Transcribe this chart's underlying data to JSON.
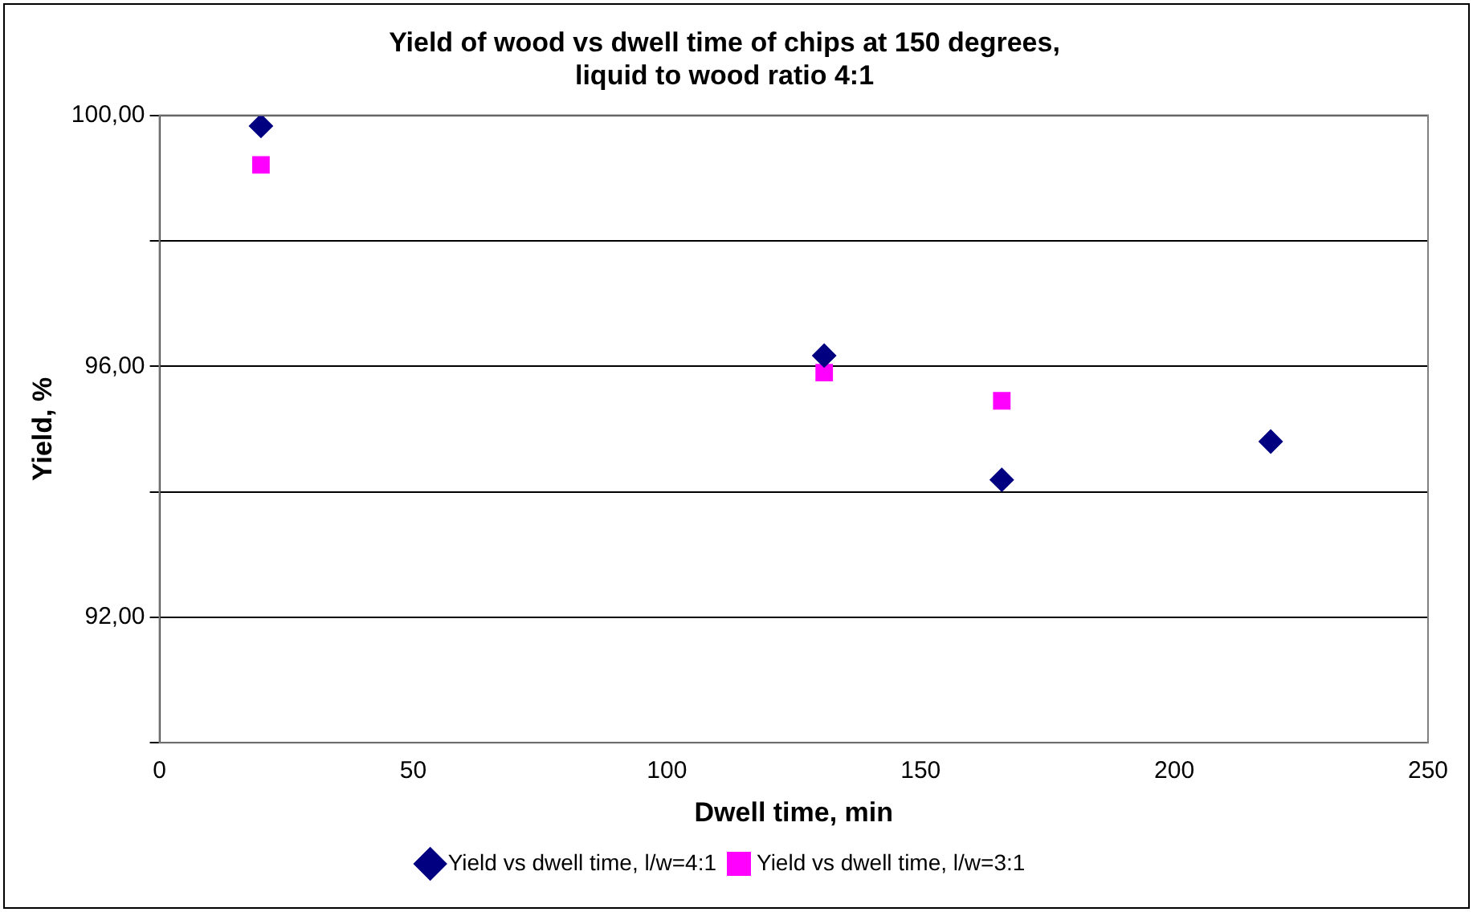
{
  "chart_data": {
    "type": "scatter",
    "title": [
      "Yield of wood vs dwell time of chips at 150 degrees,",
      "liquid to wood ratio 4:1"
    ],
    "xlabel": "Dwell time, min",
    "ylabel": "Yield, %",
    "series": [
      {
        "name": "Yield vs dwell time, l/w=4:1",
        "color": "#000080",
        "marker": "diamond",
        "x": [
          20,
          131,
          166,
          219
        ],
        "values": [
          99.83,
          96.17,
          94.19,
          94.8
        ]
      },
      {
        "name": "Yield vs dwell time, l/w=3:1",
        "color": "#ff00ff",
        "marker": "square",
        "x": [
          20,
          131,
          166
        ],
        "values": [
          99.21,
          95.9,
          95.45
        ]
      }
    ],
    "xlim": [
      0,
      250
    ],
    "xticks": [
      0,
      50,
      100,
      150,
      200,
      250
    ],
    "ylim": [
      90,
      100
    ],
    "yticks": [
      {
        "value": 90,
        "label": null
      },
      {
        "value": 92,
        "label": "92,00"
      },
      {
        "value": 94,
        "label": null
      },
      {
        "value": 96,
        "label": "96,00"
      },
      {
        "value": 98,
        "label": null
      },
      {
        "value": 100,
        "label": "100,00"
      }
    ],
    "grid": "y",
    "legend": "bottom"
  }
}
